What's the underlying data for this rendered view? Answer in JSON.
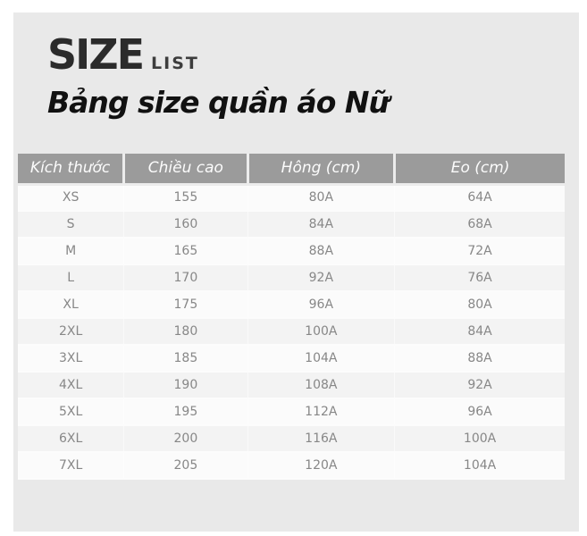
{
  "colors": {
    "page_bg": "#ffffff",
    "panel_bg": "#e9e9e9",
    "title_color": "#2b2b2b",
    "title_sub_color": "#3d3d3d",
    "subtitle_color": "#111111",
    "header_bg": "#9b9b9b",
    "header_text": "#fcfcfc",
    "divider": "#ececec",
    "row_gap": "#fcfcfc",
    "row_odd": "#fbfbfb",
    "row_even": "#f3f3f3",
    "cell_text": "#878787"
  },
  "header": {
    "title_main": "SIZE",
    "title_sub": "LIST",
    "subtitle": "Bảng size quần áo Nữ"
  },
  "table": {
    "columns": [
      "Kích thước",
      "Chiều cao",
      "Hông (cm)",
      "Eo (cm)"
    ],
    "column_keys": [
      "size",
      "height",
      "hip",
      "waist"
    ],
    "rows": [
      [
        "XS",
        "155",
        "80A",
        "64A"
      ],
      [
        "S",
        "160",
        "84A",
        "68A"
      ],
      [
        "M",
        "165",
        "88A",
        "72A"
      ],
      [
        "L",
        "170",
        "92A",
        "76A"
      ],
      [
        "XL",
        "175",
        "96A",
        "80A"
      ],
      [
        "2XL",
        "180",
        "100A",
        "84A"
      ],
      [
        "3XL",
        "185",
        "104A",
        "88A"
      ],
      [
        "4XL",
        "190",
        "108A",
        "92A"
      ],
      [
        "5XL",
        "195",
        "112A",
        "96A"
      ],
      [
        "6XL",
        "200",
        "116A",
        "100A"
      ],
      [
        "7XL",
        "205",
        "120A",
        "104A"
      ]
    ]
  }
}
